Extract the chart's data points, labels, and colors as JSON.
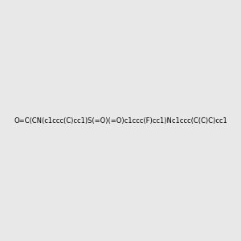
{
  "smiles": "O=C(CN(c1ccc(C)cc1)S(=O)(=O)c1ccc(F)cc1)Nc1ccc(C(C)C)cc1",
  "img_size": [
    300,
    300
  ],
  "background_color": "#e8e8e8",
  "atom_colors": {
    "N": "#0000ff",
    "O": "#ff0000",
    "S": "#cccc00",
    "F": "#ff00ff",
    "H": "#006666"
  },
  "title": ""
}
